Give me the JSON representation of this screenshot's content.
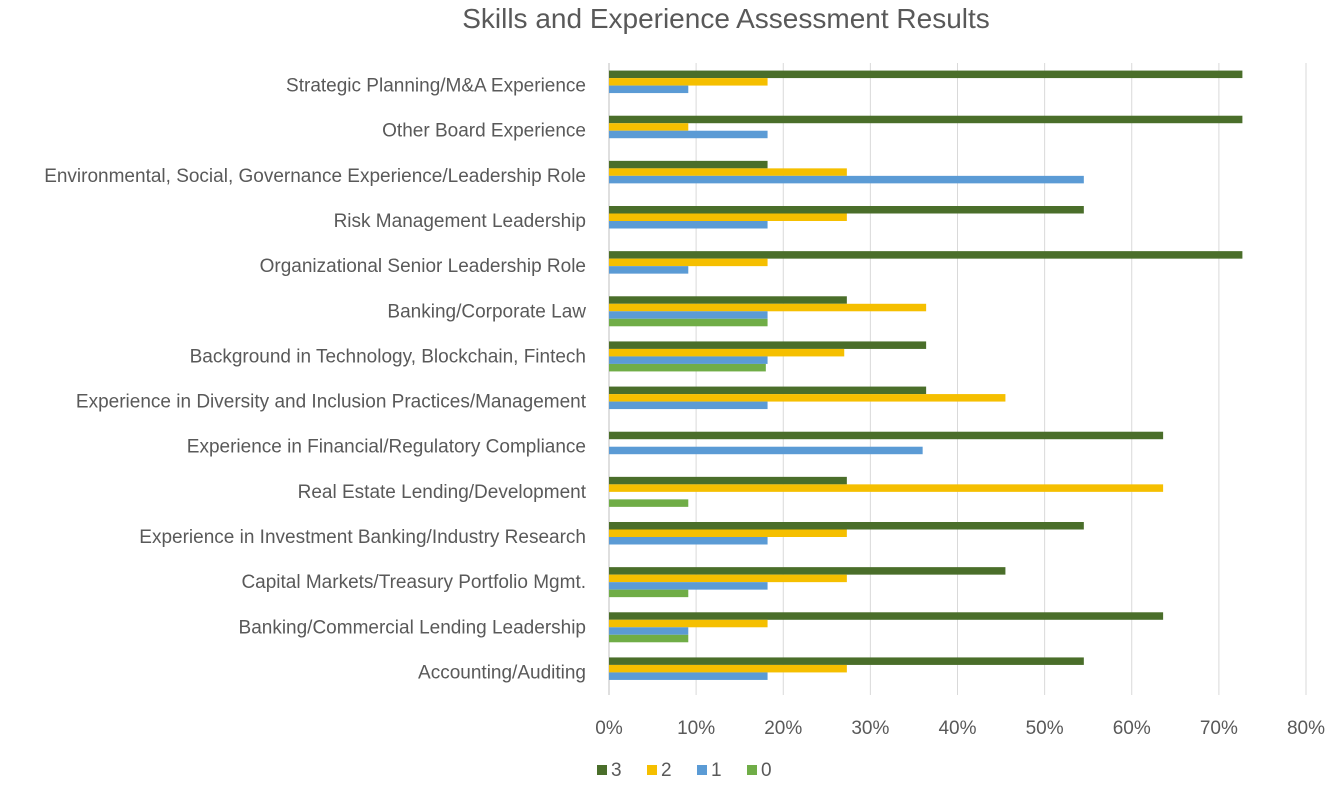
{
  "chart_data": {
    "type": "bar",
    "orientation": "horizontal",
    "title": "Skills and Experience Assessment Results",
    "xlabel": "",
    "ylabel": "",
    "xlim": [
      0,
      80
    ],
    "x_ticks": [
      "0%",
      "10%",
      "20%",
      "30%",
      "40%",
      "50%",
      "60%",
      "70%",
      "80%"
    ],
    "grid": true,
    "legend_position": "bottom",
    "categories": [
      "Strategic Planning/M&A Experience",
      "Other Board Experience",
      "Environmental, Social, Governance Experience/Leadership Role",
      "Risk Management Leadership",
      "Organizational Senior Leadership Role",
      "Banking/Corporate Law",
      "Background in Technology, Blockchain, Fintech",
      "Experience in Diversity and Inclusion Practices/Management",
      "Experience in Financial/Regulatory Compliance",
      "Real Estate Lending/Development",
      "Experience in Investment Banking/Industry Research",
      "Capital Markets/Treasury Portfolio Mgmt.",
      "Banking/Commercial Lending Leadership",
      "Accounting/Auditing"
    ],
    "series": [
      {
        "name": "3",
        "color": "#4a6e2a",
        "values": [
          72.7,
          72.7,
          18.2,
          54.5,
          72.7,
          27.3,
          36.4,
          36.4,
          63.6,
          27.3,
          54.5,
          45.5,
          63.6,
          54.5
        ]
      },
      {
        "name": "2",
        "color": "#f5bf00",
        "values": [
          18.2,
          9.1,
          27.3,
          27.3,
          18.2,
          36.4,
          27.0,
          45.5,
          0,
          63.6,
          27.3,
          27.3,
          18.2,
          27.3
        ]
      },
      {
        "name": "1",
        "color": "#5b9bd5",
        "values": [
          9.1,
          18.2,
          54.5,
          18.2,
          9.1,
          18.2,
          18.2,
          18.2,
          36.0,
          0,
          18.2,
          18.2,
          9.1,
          18.2
        ]
      },
      {
        "name": "0",
        "color": "#70ad47",
        "values": [
          0,
          0,
          0,
          0,
          0,
          18.2,
          18.0,
          0,
          0,
          9.1,
          0,
          9.1,
          9.1,
          0
        ]
      }
    ]
  }
}
